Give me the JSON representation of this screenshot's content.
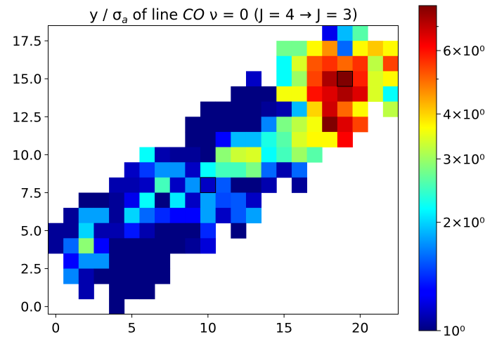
{
  "chart_data": {
    "type": "heatmap",
    "title": "y / σ",
    "title_sub": "a",
    "title_rest": " of line ",
    "title_species": "CO",
    "title_transition": " ν = 0 (J = 4 → J = 3)",
    "xlim": [
      -0.5,
      22.5
    ],
    "ylim": [
      -0.5,
      18.5
    ],
    "x_ticks": [
      0,
      5,
      10,
      15,
      20
    ],
    "x_tick_labels": [
      "0",
      "5",
      "10",
      "15",
      "20"
    ],
    "y_ticks": [
      0.0,
      2.5,
      5.0,
      7.5,
      10.0,
      12.5,
      15.0,
      17.5
    ],
    "y_tick_labels": [
      "0.0",
      "2.5",
      "5.0",
      "7.5",
      "10.0",
      "12.5",
      "15.0",
      "17.5"
    ],
    "colormap": "jet",
    "colorbar": {
      "scale": "log",
      "min": 1.0,
      "max": 8.0,
      "ticks": [
        1,
        2,
        3,
        4,
        6
      ],
      "tick_labels": [
        "10⁰",
        "2×10⁰",
        "3×10⁰",
        "4×10⁰",
        "6×10⁰"
      ]
    },
    "highlighted_cells": [
      [
        10,
        8
      ],
      [
        19,
        15
      ]
    ],
    "rows": [
      {
        "y": 18,
        "start": 18,
        "values": [
          1.25,
          1.9,
          2.6
        ]
      },
      {
        "y": 17,
        "start": 15,
        "values": [
          2.75,
          2.75,
          3.7,
          4.6,
          1.6,
          3.7,
          4.1,
          3.7
        ]
      },
      {
        "y": 16,
        "start": 15,
        "values": [
          2.2,
          3.4,
          5.2,
          5.6,
          5.0,
          5.6,
          3.2,
          5.4
        ]
      },
      {
        "y": 15,
        "start": 13,
        "values": [
          1.15,
          null,
          2.2,
          3.0,
          5.4,
          7.3,
          8.0,
          5.8,
          3.4,
          3.7
        ]
      },
      {
        "y": 14,
        "start": 12,
        "values": [
          1.0,
          1.0,
          1.0,
          3.6,
          3.6,
          6.0,
          6.6,
          7.3,
          6.6,
          3.4,
          2.2
        ]
      },
      {
        "y": 13,
        "start": 10,
        "values": [
          1.0,
          1.0,
          1.0,
          1.0,
          1.05,
          1.1,
          1.9,
          4.0,
          6.8,
          5.0,
          3.7,
          null,
          3.2
        ]
      },
      {
        "y": 12,
        "start": 9,
        "values": [
          1.0,
          1.0,
          1.0,
          1.0,
          1.0,
          1.7,
          2.8,
          3.2,
          3.6,
          8.0,
          6.6,
          5.4
        ]
      },
      {
        "y": 11,
        "start": 9,
        "values": [
          1.0,
          1.0,
          1.3,
          1.9,
          1.9,
          2.3,
          2.6,
          3.4,
          3.7,
          3.7,
          6.2
        ]
      },
      {
        "y": 10,
        "start": 6,
        "values": [
          2.2,
          1.1,
          1.05,
          1.05,
          1.0,
          2.9,
          3.3,
          3.4,
          2.2,
          2.5,
          3.0,
          2.6
        ]
      },
      {
        "y": 9,
        "start": 5,
        "values": [
          1.15,
          1.45,
          1.75,
          1.75,
          1.15,
          2.2,
          2.5,
          2.5,
          2.8,
          1.6,
          1.1,
          1.6
        ]
      },
      {
        "y": 8,
        "start": 4,
        "values": [
          1.1,
          1.1,
          1.15,
          2.5,
          1.15,
          1.75,
          1.15,
          1.55,
          1.0,
          1.0,
          1.1,
          null,
          1.05
        ]
      },
      {
        "y": 7,
        "start": 2,
        "values": [
          1.0,
          1.0,
          1.05,
          1.25,
          2.2,
          1.0,
          2.1,
          1.15,
          1.8,
          1.5,
          1.55,
          1.15
        ]
      },
      {
        "y": 6,
        "start": 1,
        "values": [
          1.05,
          1.8,
          1.8,
          1.05,
          2.0,
          1.6,
          1.4,
          1.3,
          1.3,
          1.8,
          1.15,
          1.55,
          1.8
        ]
      },
      {
        "y": 5,
        "start": 0,
        "values": [
          1.05,
          1.05,
          2.0,
          1.1,
          1.1,
          1.35,
          1.1,
          1.0,
          1.0,
          1.0,
          1.4,
          null,
          1.0
        ]
      },
      {
        "y": 4,
        "start": 0,
        "values": [
          1.05,
          1.6,
          2.9,
          1.3,
          1.0,
          1.0,
          1.0,
          1.0,
          1.0,
          1.05,
          1.2
        ]
      },
      {
        "y": 3,
        "start": 1,
        "values": [
          1.3,
          1.75,
          1.75,
          1.0,
          1.0,
          1.0,
          1.0
        ]
      },
      {
        "y": 2,
        "start": 1,
        "values": [
          1.7,
          1.1,
          1.0,
          1.0,
          1.0,
          1.0,
          1.0
        ]
      },
      {
        "y": 1,
        "start": 2,
        "values": [
          1.1,
          null,
          1.0,
          1.0,
          1.0
        ]
      },
      {
        "y": 0,
        "start": 4,
        "values": [
          1.0
        ]
      }
    ]
  }
}
